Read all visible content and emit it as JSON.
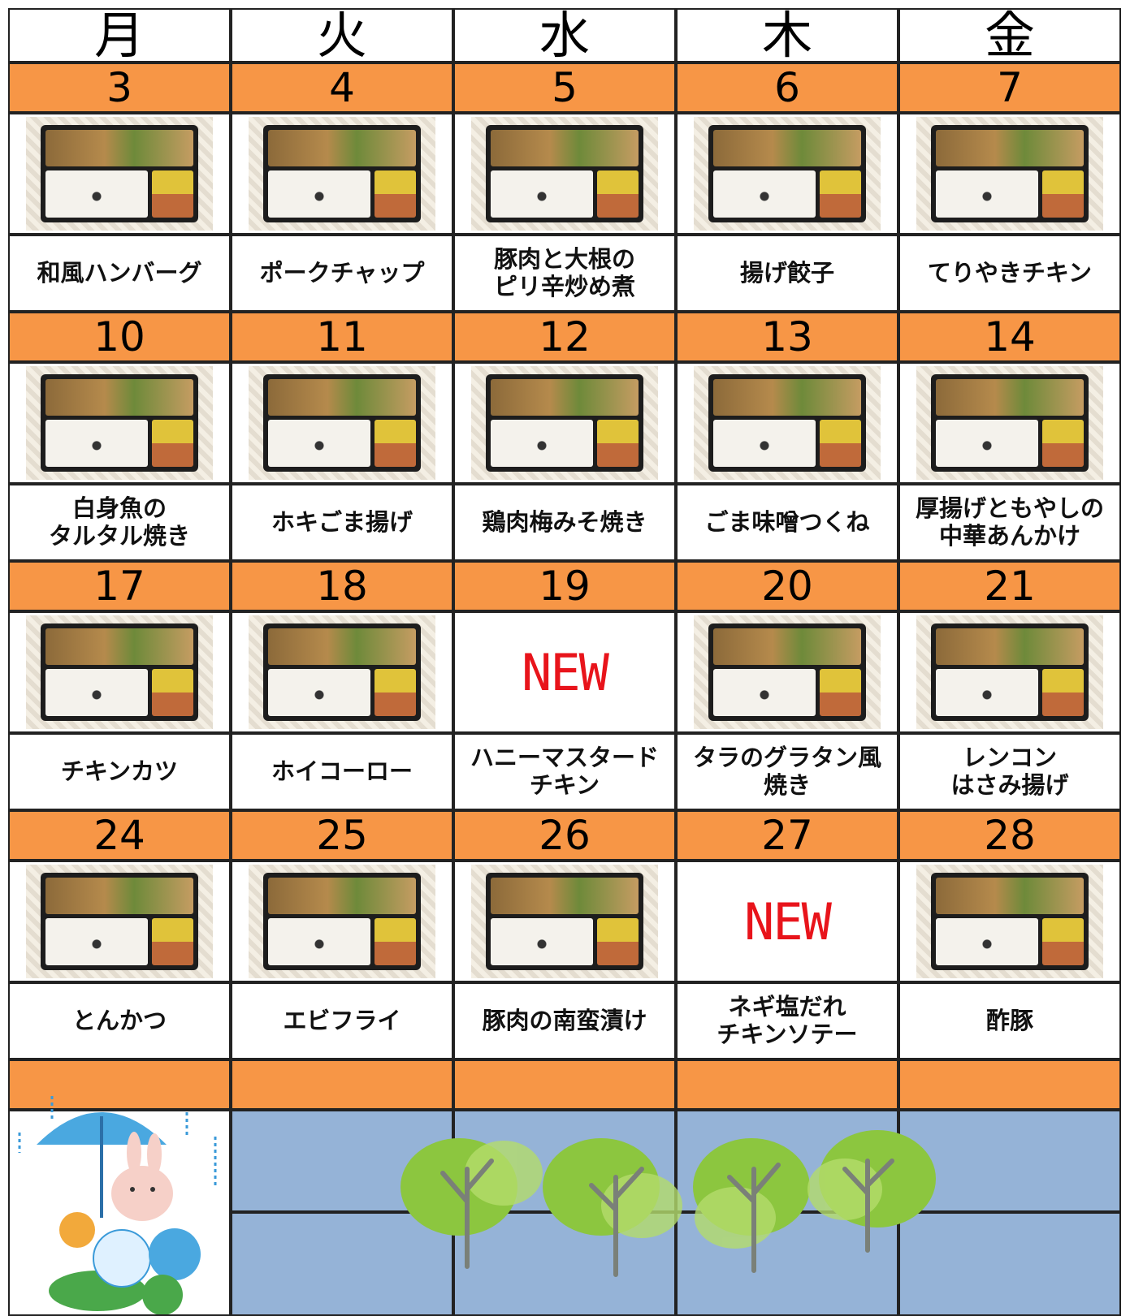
{
  "header": {
    "days": [
      "月",
      "火",
      "水",
      "木",
      "金"
    ]
  },
  "weeks": [
    {
      "cells": [
        {
          "date": 3,
          "dish": "和風ハンバーグ"
        },
        {
          "date": 4,
          "dish": "ポークチャップ"
        },
        {
          "date": 5,
          "dish": "豚肉と大根の\nピリ辛炒め煮"
        },
        {
          "date": 6,
          "dish": "揚げ餃子"
        },
        {
          "date": 7,
          "dish": "てりやきチキン"
        }
      ]
    },
    {
      "cells": [
        {
          "date": 10,
          "dish": "白身魚の\nタルタル焼き"
        },
        {
          "date": 11,
          "dish": "ホキごま揚げ"
        },
        {
          "date": 12,
          "dish": "鶏肉梅みそ焼き"
        },
        {
          "date": 13,
          "dish": "ごま味噌つくね"
        },
        {
          "date": 14,
          "dish": "厚揚げともやしの\n中華あんかけ"
        }
      ]
    },
    {
      "cells": [
        {
          "date": 17,
          "dish": "チキンカツ"
        },
        {
          "date": 18,
          "dish": "ホイコーロー"
        },
        {
          "date": 19,
          "dish": "ハニーマスタード\nチキン",
          "badge": "NEW"
        },
        {
          "date": 20,
          "dish": "タラのグラタン風\n焼き"
        },
        {
          "date": 21,
          "dish": "レンコン\nはさみ揚げ"
        }
      ]
    },
    {
      "cells": [
        {
          "date": 24,
          "dish": "とんかつ"
        },
        {
          "date": 25,
          "dish": "エビフライ"
        },
        {
          "date": 26,
          "dish": "豚肉の南蛮漬け"
        },
        {
          "date": 27,
          "dish": "ネギ塩だれ\nチキンソテー",
          "badge": "NEW"
        },
        {
          "date": 28,
          "dish": "酢豚"
        }
      ]
    }
  ]
}
